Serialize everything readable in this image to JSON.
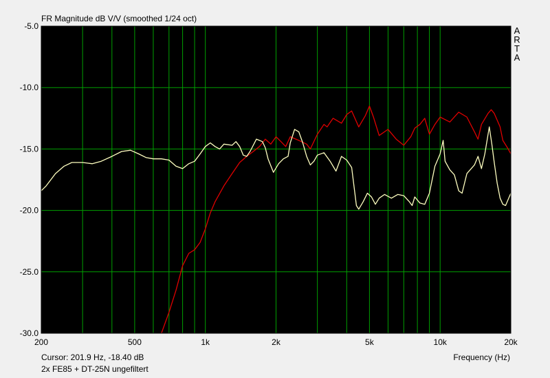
{
  "title": "FR Magnitude dB V/V (smoothed 1/24 oct)",
  "cursor_readout": "Cursor: 201.9 Hz, -18.40 dB",
  "caption": "2x FE85 + DT-25N ungefiltert",
  "watermark": [
    "A",
    "R",
    "T",
    "A"
  ],
  "colors": {
    "background": "#000000",
    "grid": "#00a000",
    "series_red": "#e00000",
    "series_yellow": "#ffffc0"
  },
  "chart_data": {
    "type": "line",
    "title": "FR Magnitude dB V/V (smoothed 1/24 oct)",
    "xlabel": "Frequency (Hz)",
    "ylabel": "",
    "x_scale": "log",
    "xlim": [
      200,
      20000
    ],
    "ylim": [
      -30,
      -5
    ],
    "x_ticks": [
      {
        "value": 200,
        "label": "200"
      },
      {
        "value": 500,
        "label": "500"
      },
      {
        "value": 1000,
        "label": "1k"
      },
      {
        "value": 2000,
        "label": "2k"
      },
      {
        "value": 5000,
        "label": "5k"
      },
      {
        "value": 10000,
        "label": "10k"
      },
      {
        "value": 20000,
        "label": "20k"
      }
    ],
    "y_ticks": [
      {
        "value": -5,
        "label": "-5.0"
      },
      {
        "value": -10,
        "label": "-10.0"
      },
      {
        "value": -15,
        "label": "-15.0"
      },
      {
        "value": -20,
        "label": "-20.0"
      },
      {
        "value": -25,
        "label": "-25.0"
      },
      {
        "value": -30,
        "label": "-30.0"
      }
    ],
    "grid": true,
    "series": [
      {
        "color": "#e00000",
        "points": [
          [
            650,
            -30.0
          ],
          [
            700,
            -28.3
          ],
          [
            750,
            -26.5
          ],
          [
            800,
            -24.5
          ],
          [
            850,
            -23.5
          ],
          [
            900,
            -23.2
          ],
          [
            950,
            -22.6
          ],
          [
            1000,
            -21.5
          ],
          [
            1050,
            -20.2
          ],
          [
            1100,
            -19.3
          ],
          [
            1200,
            -18.0
          ],
          [
            1300,
            -17.0
          ],
          [
            1400,
            -16.1
          ],
          [
            1500,
            -15.6
          ],
          [
            1600,
            -15.2
          ],
          [
            1700,
            -14.8
          ],
          [
            1800,
            -14.2
          ],
          [
            1900,
            -14.6
          ],
          [
            2000,
            -14.0
          ],
          [
            2100,
            -14.4
          ],
          [
            2200,
            -14.8
          ],
          [
            2300,
            -14.0
          ],
          [
            2500,
            -14.3
          ],
          [
            2700,
            -14.6
          ],
          [
            2800,
            -15.0
          ],
          [
            3000,
            -13.8
          ],
          [
            3200,
            -13.0
          ],
          [
            3300,
            -13.2
          ],
          [
            3500,
            -12.5
          ],
          [
            3800,
            -12.9
          ],
          [
            4000,
            -12.2
          ],
          [
            4200,
            -11.9
          ],
          [
            4500,
            -13.2
          ],
          [
            4800,
            -12.3
          ],
          [
            5000,
            -11.5
          ],
          [
            5200,
            -12.4
          ],
          [
            5500,
            -13.9
          ],
          [
            6000,
            -13.4
          ],
          [
            6500,
            -14.2
          ],
          [
            7000,
            -14.7
          ],
          [
            7500,
            -14.0
          ],
          [
            7800,
            -13.3
          ],
          [
            8200,
            -13.0
          ],
          [
            8600,
            -12.5
          ],
          [
            9000,
            -13.8
          ],
          [
            9500,
            -13.0
          ],
          [
            10000,
            -12.4
          ],
          [
            11000,
            -12.8
          ],
          [
            12000,
            -12.0
          ],
          [
            13000,
            -12.4
          ],
          [
            14000,
            -13.6
          ],
          [
            14500,
            -14.2
          ],
          [
            15000,
            -13.0
          ],
          [
            16000,
            -12.1
          ],
          [
            16500,
            -11.8
          ],
          [
            17000,
            -12.1
          ],
          [
            18000,
            -13.2
          ],
          [
            18500,
            -14.3
          ],
          [
            19500,
            -15.0
          ],
          [
            20000,
            -15.4
          ]
        ]
      },
      {
        "color": "#ffffc0",
        "points": [
          [
            200,
            -18.4
          ],
          [
            210,
            -18.0
          ],
          [
            230,
            -17.0
          ],
          [
            250,
            -16.4
          ],
          [
            270,
            -16.1
          ],
          [
            300,
            -16.1
          ],
          [
            330,
            -16.2
          ],
          [
            360,
            -16.0
          ],
          [
            400,
            -15.6
          ],
          [
            440,
            -15.2
          ],
          [
            480,
            -15.1
          ],
          [
            520,
            -15.4
          ],
          [
            560,
            -15.7
          ],
          [
            600,
            -15.8
          ],
          [
            650,
            -15.8
          ],
          [
            700,
            -15.9
          ],
          [
            750,
            -16.4
          ],
          [
            800,
            -16.6
          ],
          [
            850,
            -16.2
          ],
          [
            900,
            -16.0
          ],
          [
            950,
            -15.4
          ],
          [
            1000,
            -14.8
          ],
          [
            1050,
            -14.5
          ],
          [
            1100,
            -14.8
          ],
          [
            1150,
            -15.0
          ],
          [
            1200,
            -14.6
          ],
          [
            1300,
            -14.7
          ],
          [
            1350,
            -14.4
          ],
          [
            1400,
            -14.8
          ],
          [
            1450,
            -15.5
          ],
          [
            1500,
            -15.6
          ],
          [
            1550,
            -15.2
          ],
          [
            1650,
            -14.2
          ],
          [
            1750,
            -14.4
          ],
          [
            1800,
            -14.9
          ],
          [
            1850,
            -15.8
          ],
          [
            1950,
            -16.9
          ],
          [
            2050,
            -16.2
          ],
          [
            2150,
            -15.8
          ],
          [
            2250,
            -15.6
          ],
          [
            2300,
            -14.5
          ],
          [
            2400,
            -13.4
          ],
          [
            2500,
            -13.6
          ],
          [
            2600,
            -14.5
          ],
          [
            2700,
            -15.6
          ],
          [
            2800,
            -16.3
          ],
          [
            2900,
            -16.0
          ],
          [
            3000,
            -15.5
          ],
          [
            3200,
            -15.3
          ],
          [
            3400,
            -16.0
          ],
          [
            3600,
            -16.8
          ],
          [
            3800,
            -15.6
          ],
          [
            4000,
            -15.9
          ],
          [
            4200,
            -16.5
          ],
          [
            4400,
            -19.6
          ],
          [
            4500,
            -19.9
          ],
          [
            4700,
            -19.3
          ],
          [
            4900,
            -18.6
          ],
          [
            5100,
            -18.9
          ],
          [
            5300,
            -19.5
          ],
          [
            5500,
            -19.0
          ],
          [
            5800,
            -18.7
          ],
          [
            6200,
            -19.0
          ],
          [
            6600,
            -18.7
          ],
          [
            7000,
            -18.8
          ],
          [
            7400,
            -19.3
          ],
          [
            7600,
            -19.6
          ],
          [
            7800,
            -18.9
          ],
          [
            8200,
            -19.4
          ],
          [
            8600,
            -19.5
          ],
          [
            9000,
            -18.6
          ],
          [
            9500,
            -16.4
          ],
          [
            10000,
            -15.4
          ],
          [
            10300,
            -14.3
          ],
          [
            10500,
            -16.0
          ],
          [
            11000,
            -16.7
          ],
          [
            11500,
            -17.1
          ],
          [
            12000,
            -18.4
          ],
          [
            12400,
            -18.6
          ],
          [
            13000,
            -17.0
          ],
          [
            14000,
            -16.3
          ],
          [
            14500,
            -15.6
          ],
          [
            15000,
            -16.6
          ],
          [
            15500,
            -15.4
          ],
          [
            16200,
            -13.2
          ],
          [
            16600,
            -14.6
          ],
          [
            17000,
            -16.1
          ],
          [
            17500,
            -17.8
          ],
          [
            18000,
            -19.0
          ],
          [
            18500,
            -19.5
          ],
          [
            19000,
            -19.6
          ],
          [
            20000,
            -18.6
          ]
        ]
      }
    ]
  }
}
